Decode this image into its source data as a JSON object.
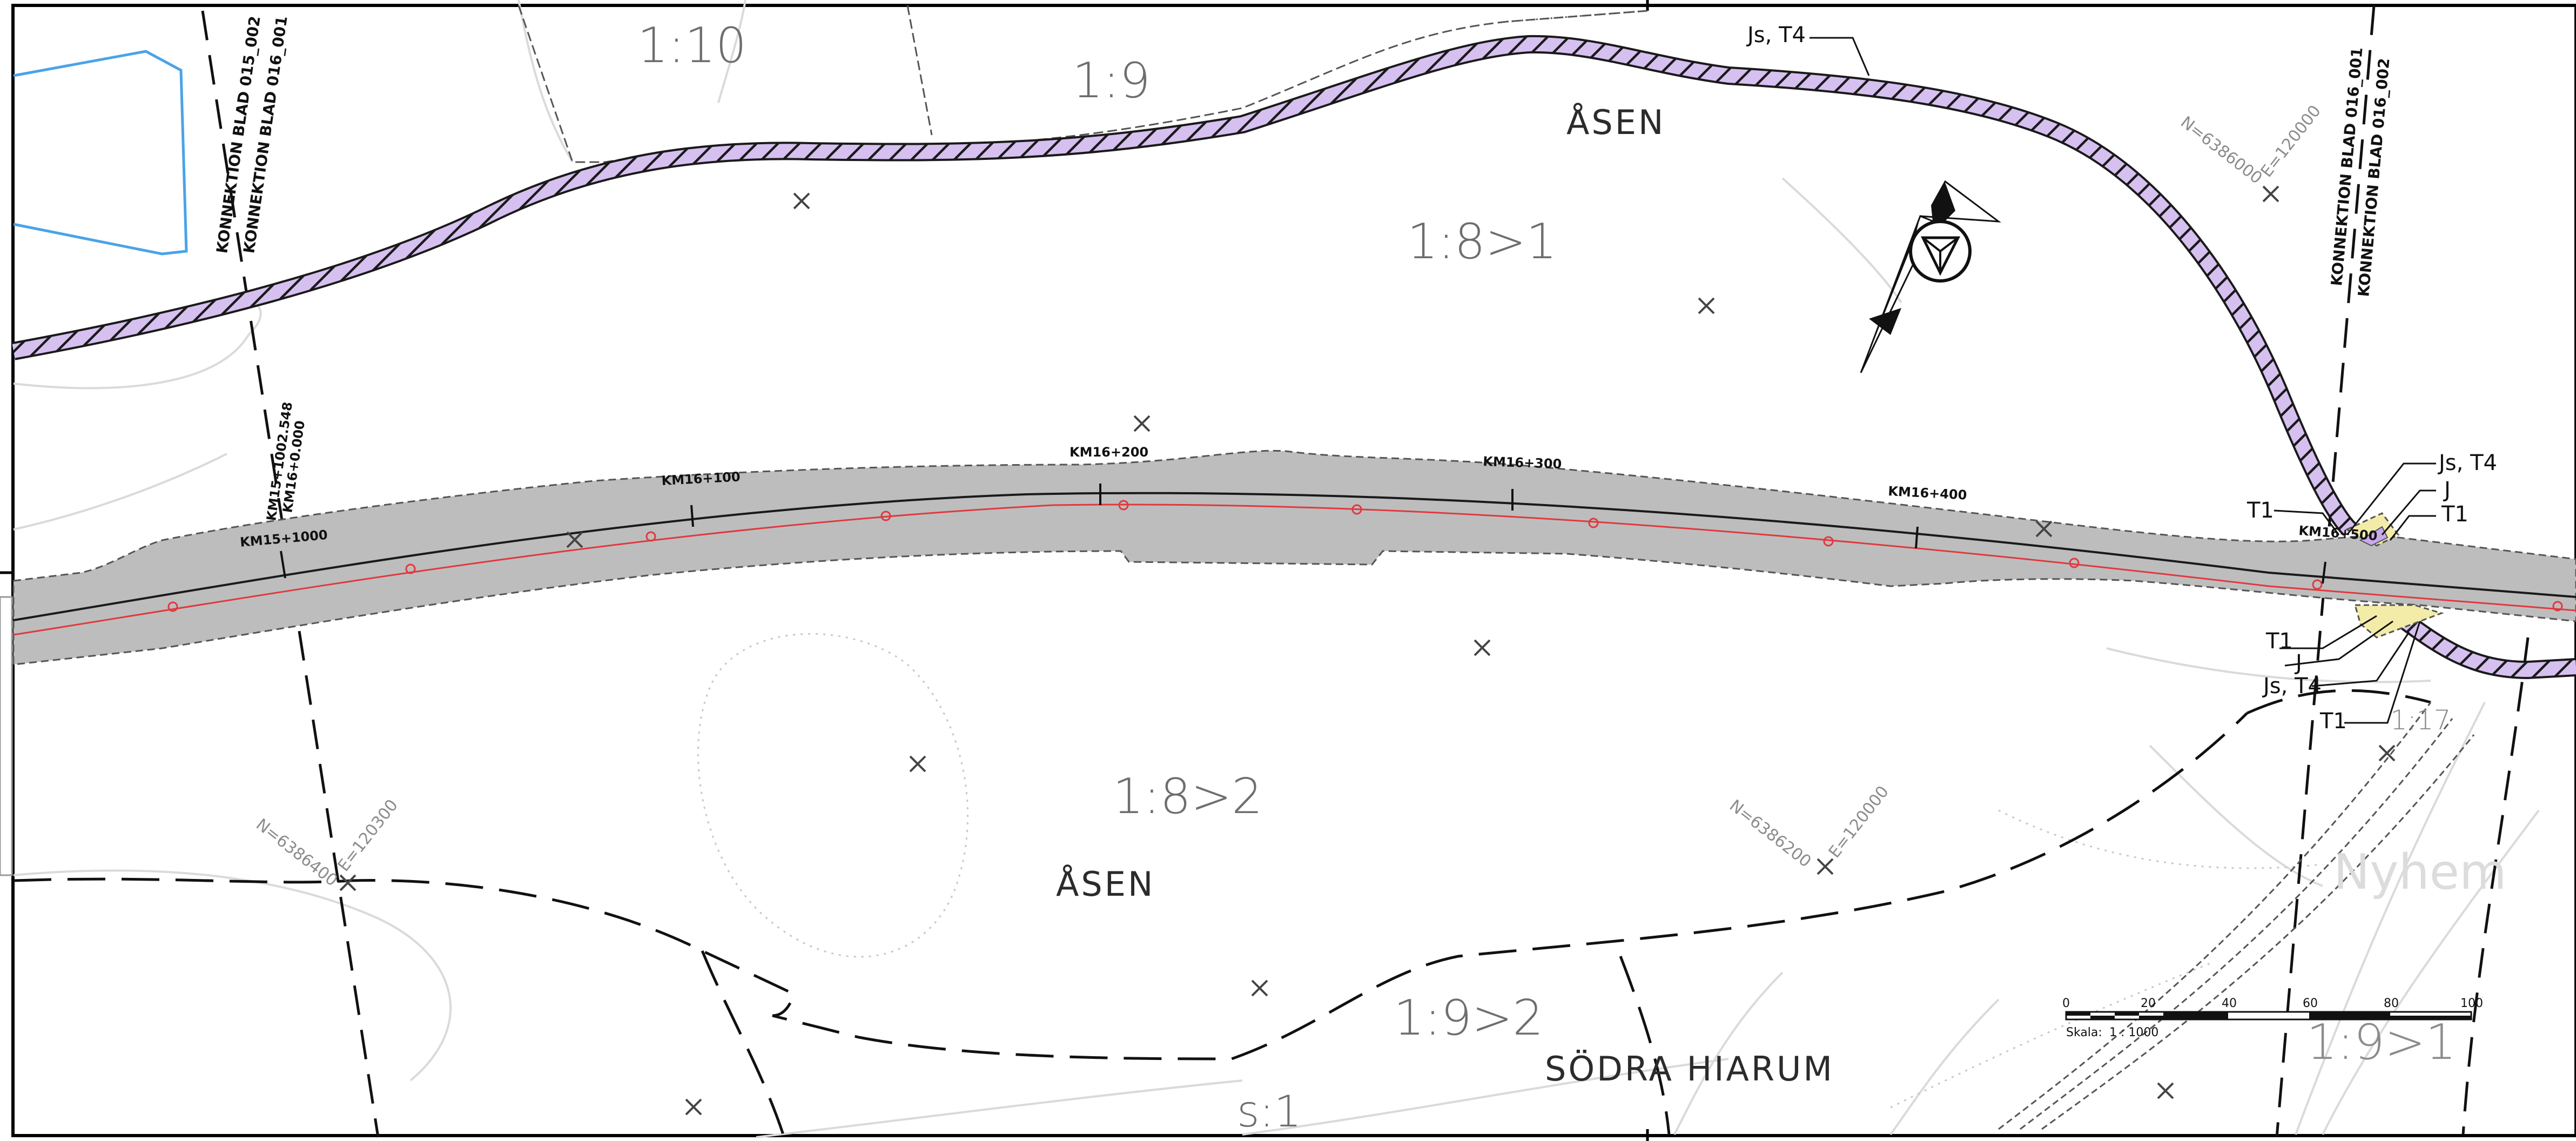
{
  "map": {
    "parcels": [
      "1:10",
      "1:9",
      "1:8>1",
      "1:8>2",
      "1:9>2",
      "1:9>1",
      "s:1",
      "1:17"
    ],
    "place_names": [
      "ÅSEN",
      "ÅSEN",
      "SÖDRA HIARUM",
      "Nyhem"
    ],
    "connections": {
      "left_a": "KONNEKTION BLAD 015_002",
      "left_b": "KONNEKTION BLAD 016_001",
      "right_a": "KONNEKTION BLAD 016_001",
      "right_b": "KONNEKTION BLAD 016_002"
    },
    "chainage": {
      "km15_end": "KM15+1002.548",
      "km16_start": "KM16+0.000",
      "km15_1000": "KM15+1000",
      "km16_100": "KM16+100",
      "km16_200": "KM16+200",
      "km16_300": "KM16+300",
      "km16_400": "KM16+400",
      "km16_500": "KM16+500"
    },
    "coordinates": {
      "n1": "N=6386000",
      "e1": "E=120000",
      "n2": "N=6386400",
      "e2": "E=120300",
      "n3": "N=6386200",
      "e3": "E=120000"
    },
    "labels": {
      "js_t4_top": "Js, T4",
      "js_t4_right": "Js, T4",
      "j_right": "J",
      "t1_right": "T1",
      "t1_left_top": "T1",
      "t1_left_low": "T1",
      "j_left": "J",
      "js_t4_left": "Js, T4",
      "t1_bottom": "T1"
    },
    "scale_bar": {
      "ticks": [
        "0",
        "20",
        "40",
        "60",
        "80",
        "100"
      ],
      "label": "Skala:",
      "ratio": "1 : 1000"
    }
  }
}
